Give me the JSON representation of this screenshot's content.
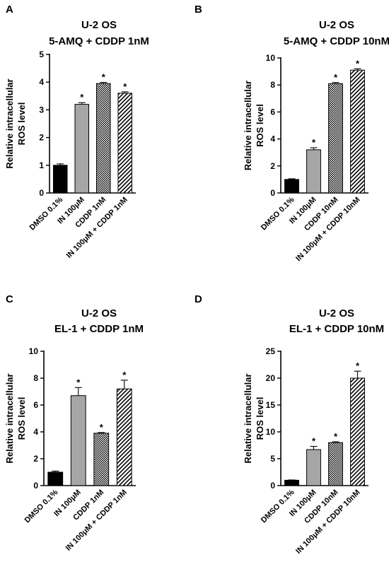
{
  "chart_data": [
    {
      "type": "bar",
      "panel": "A",
      "title_lines": [
        "U-2 OS",
        "5-AMQ + CDDP 1nM"
      ],
      "ylabel_lines": [
        "Relative intracellular",
        "ROS level"
      ],
      "categories": [
        "DMSO 0.1%",
        "IN 100μM",
        "CDDP 1nM",
        "IN 100μM + CDDP 1nM"
      ],
      "values": [
        1.0,
        3.2,
        3.95,
        3.6
      ],
      "errors": [
        0.05,
        0.06,
        0.04,
        0.05
      ],
      "significance": [
        "",
        "*",
        "*",
        "*"
      ],
      "fills": [
        "solid-black",
        "solid-grey",
        "crosshatch",
        "diagonal"
      ],
      "ylim": [
        0,
        5
      ],
      "yticks": [
        0,
        1,
        2,
        3,
        4,
        5
      ]
    },
    {
      "type": "bar",
      "panel": "B",
      "title_lines": [
        "U-2 OS",
        "5-AMQ + CDDP 10nM"
      ],
      "ylabel_lines": [
        "Relative intracellular",
        "ROS level"
      ],
      "categories": [
        "DMSO 0.1%",
        "IN 100μM",
        "CDDP 10nM",
        "IN 100μM + CDDP 10nM"
      ],
      "values": [
        1.0,
        3.2,
        8.1,
        9.1
      ],
      "errors": [
        0.05,
        0.15,
        0.08,
        0.1
      ],
      "significance": [
        "",
        "*",
        "*",
        "*"
      ],
      "fills": [
        "solid-black",
        "solid-grey",
        "crosshatch",
        "diagonal"
      ],
      "ylim": [
        0,
        10
      ],
      "yticks": [
        0,
        2,
        4,
        6,
        8,
        10
      ]
    },
    {
      "type": "bar",
      "panel": "C",
      "title_lines": [
        "U-2 OS",
        "EL-1 + CDDP 1nM"
      ],
      "ylabel_lines": [
        "Relative intracellular",
        "ROS level"
      ],
      "categories": [
        "DMSO 0.1%",
        "IN 100μM",
        "CDDP 1nM",
        "IN 100μM + CDDP 1nM"
      ],
      "values": [
        1.0,
        6.7,
        3.9,
        7.2
      ],
      "errors": [
        0.08,
        0.6,
        0.05,
        0.65
      ],
      "significance": [
        "",
        "*",
        "*",
        "*"
      ],
      "fills": [
        "solid-black",
        "solid-grey",
        "crosshatch",
        "diagonal"
      ],
      "ylim": [
        0,
        10
      ],
      "yticks": [
        0,
        2,
        4,
        6,
        8,
        10
      ]
    },
    {
      "type": "bar",
      "panel": "D",
      "title_lines": [
        "U-2 OS",
        "EL-1 + CDDP 10nM"
      ],
      "ylabel_lines": [
        "Relative intracellular",
        "ROS level"
      ],
      "categories": [
        "DMSO 0.1%",
        "IN 100μM",
        "CDDP 10nM",
        "IN 100μM + CDDP 10nM"
      ],
      "values": [
        1.0,
        6.7,
        8.0,
        20.0
      ],
      "errors": [
        0.05,
        0.6,
        0.15,
        1.3
      ],
      "significance": [
        "",
        "*",
        "*",
        "*"
      ],
      "fills": [
        "solid-black",
        "solid-grey",
        "crosshatch",
        "diagonal"
      ],
      "ylim": [
        0,
        25
      ],
      "yticks": [
        0,
        5,
        10,
        15,
        20,
        25
      ]
    }
  ],
  "colors": {
    "solid_black": "#000000",
    "solid_grey": "#a6a6a6",
    "pattern_line": "#000000",
    "background": "#ffffff"
  }
}
